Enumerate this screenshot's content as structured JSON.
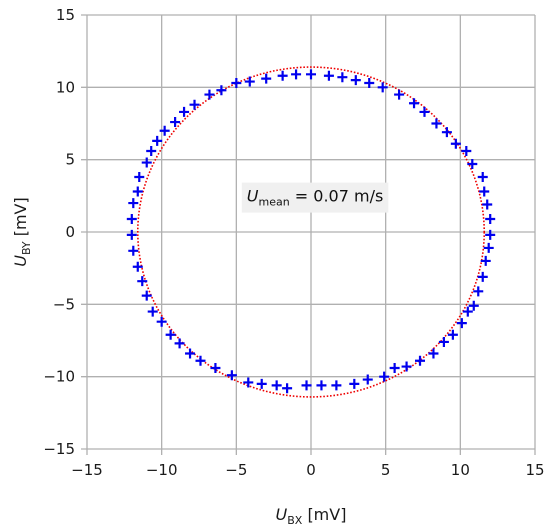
{
  "chart_data": {
    "type": "scatter",
    "xlabel": {
      "symbol": "U",
      "subscript": "BX",
      "unit": "[mV]"
    },
    "ylabel": {
      "symbol": "U",
      "subscript": "BY",
      "unit": "[mV]"
    },
    "xlim": [
      -15,
      15
    ],
    "ylim": [
      -15,
      15
    ],
    "xticks": [
      -15,
      -10,
      -5,
      0,
      5,
      10,
      15
    ],
    "yticks": [
      -15,
      -10,
      -5,
      0,
      5,
      10,
      15
    ],
    "xtick_labels": [
      "−15",
      "−10",
      "−5",
      "0",
      "5",
      "10",
      "15"
    ],
    "ytick_labels": [
      "−15",
      "−10",
      "−5",
      "0",
      "5",
      "10",
      "15"
    ],
    "grid": true,
    "annotation": {
      "symbol": "U",
      "subscript": "mean",
      "text": " = 0.07 m/s",
      "x": -4.3,
      "y": 2.1
    },
    "series": [
      {
        "marker": "plus",
        "color": "#0000ee",
        "points": [
          [
            -12.0,
            0.9
          ],
          [
            -11.9,
            2.0
          ],
          [
            -11.6,
            2.8
          ],
          [
            -11.5,
            3.8
          ],
          [
            -11.0,
            4.8
          ],
          [
            -10.7,
            5.6
          ],
          [
            -10.3,
            6.3
          ],
          [
            -9.8,
            7.0
          ],
          [
            -9.1,
            7.6
          ],
          [
            -8.5,
            8.3
          ],
          [
            -7.8,
            8.8
          ],
          [
            -6.8,
            9.5
          ],
          [
            -6.0,
            9.8
          ],
          [
            -5.0,
            10.3
          ],
          [
            -4.1,
            10.4
          ],
          [
            -3.0,
            10.6
          ],
          [
            -1.9,
            10.8
          ],
          [
            -1.0,
            10.9
          ],
          [
            0.0,
            10.9
          ],
          [
            1.2,
            10.8
          ],
          [
            2.1,
            10.7
          ],
          [
            3.0,
            10.5
          ],
          [
            3.9,
            10.3
          ],
          [
            4.8,
            10.0
          ],
          [
            5.9,
            9.5
          ],
          [
            6.9,
            8.9
          ],
          [
            7.6,
            8.3
          ],
          [
            8.4,
            7.5
          ],
          [
            9.1,
            6.9
          ],
          [
            9.7,
            6.1
          ],
          [
            10.4,
            5.6
          ],
          [
            10.8,
            4.7
          ],
          [
            11.5,
            3.8
          ],
          [
            11.6,
            2.8
          ],
          [
            11.8,
            1.9
          ],
          [
            12.0,
            0.9
          ],
          [
            12.0,
            -0.2
          ],
          [
            11.9,
            -1.1
          ],
          [
            11.7,
            -2.0
          ],
          [
            11.5,
            -3.1
          ],
          [
            11.2,
            -4.1
          ],
          [
            10.9,
            -5.1
          ],
          [
            10.5,
            -5.5
          ],
          [
            10.1,
            -6.3
          ],
          [
            9.5,
            -7.1
          ],
          [
            8.9,
            -7.6
          ],
          [
            8.2,
            -8.4
          ],
          [
            7.3,
            -8.9
          ],
          [
            6.4,
            -9.3
          ],
          [
            5.6,
            -9.4
          ],
          [
            4.9,
            -10.0
          ],
          [
            3.8,
            -10.2
          ],
          [
            2.9,
            -10.5
          ],
          [
            1.7,
            -10.6
          ],
          [
            0.7,
            -10.6
          ],
          [
            -0.3,
            -10.6
          ],
          [
            -1.6,
            -10.8
          ],
          [
            -2.3,
            -10.6
          ],
          [
            -3.3,
            -10.5
          ],
          [
            -4.2,
            -10.4
          ],
          [
            -5.3,
            -9.9
          ],
          [
            -6.4,
            -9.4
          ],
          [
            -7.4,
            -8.9
          ],
          [
            -8.1,
            -8.4
          ],
          [
            -8.8,
            -7.7
          ],
          [
            -9.4,
            -7.1
          ],
          [
            -10.0,
            -6.2
          ],
          [
            -10.6,
            -5.5
          ],
          [
            -11.0,
            -4.4
          ],
          [
            -11.3,
            -3.4
          ],
          [
            -11.6,
            -2.4
          ],
          [
            -11.9,
            -1.3
          ],
          [
            -12.0,
            -0.2
          ]
        ]
      },
      {
        "type": "ellipse",
        "color": "#ee0000",
        "line_style": "dotted",
        "center": [
          0,
          0
        ],
        "rx": 11.6,
        "ry": 11.4
      }
    ]
  }
}
